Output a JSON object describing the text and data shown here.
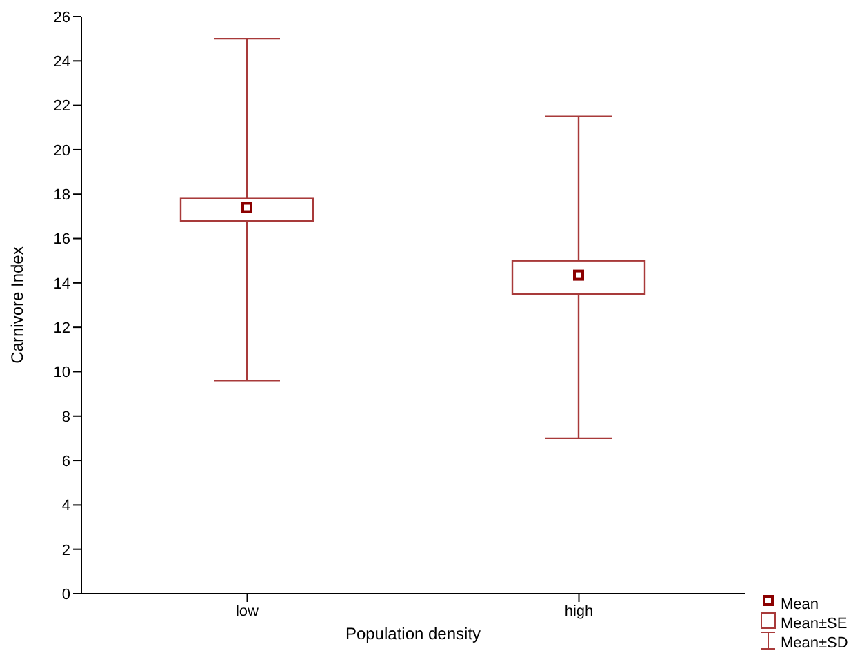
{
  "chart_data": {
    "type": "box",
    "xlabel": "Population density",
    "ylabel": "Carnivore Index",
    "categories": [
      "low",
      "high"
    ],
    "color": "#a83a3a",
    "boxes": [
      {
        "low": 9.6,
        "q1": 16.8,
        "median": null,
        "q3": 17.8,
        "high": 25,
        "mean": 17.4
      },
      {
        "low": 7.0,
        "q1": 13.5,
        "median": null,
        "q3": 15.0,
        "high": 21.5,
        "mean": 14.35
      }
    ],
    "ylim": [
      0,
      26
    ],
    "yticks": [
      0,
      2,
      4,
      6,
      8,
      10,
      12,
      14,
      16,
      18,
      20,
      22,
      24,
      26
    ],
    "annotations": [
      "Mean",
      "Mean±SE",
      "Mean±SD"
    ]
  }
}
